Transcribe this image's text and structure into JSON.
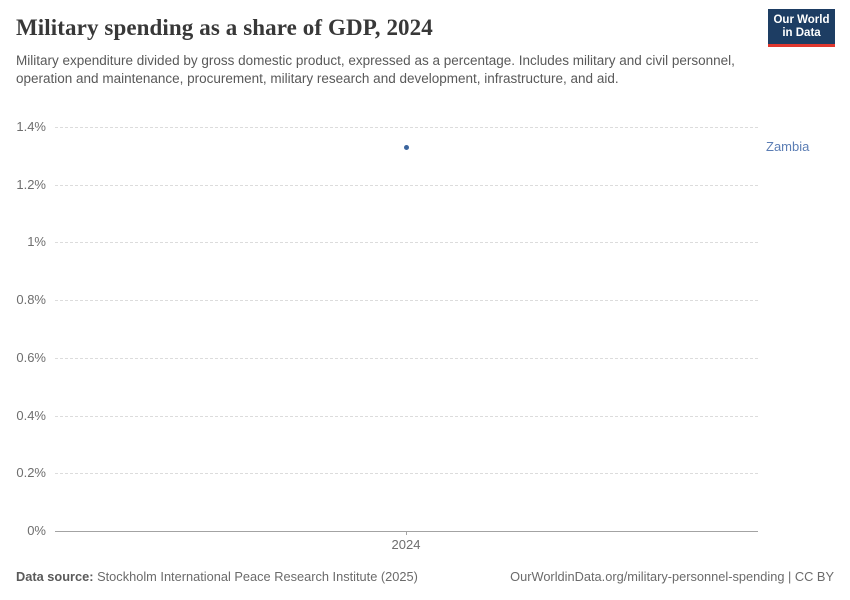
{
  "header": {
    "title": "Military spending as a share of GDP, 2024",
    "subtitle": "Military expenditure divided by gross domestic product, expressed as a percentage. Includes military and civil personnel, operation and maintenance, procurement, military research and development, infrastructure, and aid."
  },
  "logo": {
    "line1": "Our World",
    "line2": "in Data",
    "bg_color": "#1d3d63",
    "accent_color": "#e0372e"
  },
  "chart_data": {
    "type": "scatter",
    "title": "Military spending as a share of GDP, 2024",
    "x": [
      2024
    ],
    "x_tick_labels": [
      "2024"
    ],
    "series": [
      {
        "name": "Zambia",
        "values": [
          1.33
        ]
      }
    ],
    "xlabel": "",
    "ylabel": "",
    "ylim": [
      0,
      1.4
    ],
    "yticks": [
      {
        "value": 0,
        "label": "0%"
      },
      {
        "value": 0.2,
        "label": "0.2%"
      },
      {
        "value": 0.4,
        "label": "0.4%"
      },
      {
        "value": 0.6,
        "label": "0.6%"
      },
      {
        "value": 0.8,
        "label": "0.8%"
      },
      {
        "value": 1.0,
        "label": "1%"
      },
      {
        "value": 1.2,
        "label": "1.2%"
      },
      {
        "value": 1.4,
        "label": "1.4%"
      }
    ],
    "grid": "horizontal-dashed",
    "legend_position": "right-of-point",
    "point_color": "#3b659e",
    "label_color": "#5b7db4"
  },
  "footer": {
    "source_label": "Data source:",
    "source_text": " Stockholm International Peace Research Institute (2025)",
    "credit": "OurWorldinData.org/military-personnel-spending | CC BY"
  }
}
